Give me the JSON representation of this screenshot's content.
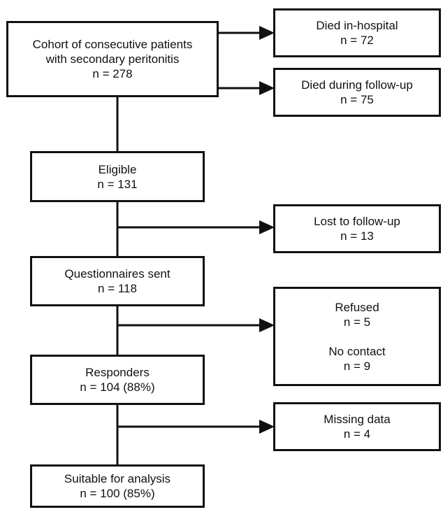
{
  "main_flow": {
    "cohort": {
      "line1": "Cohort of consecutive patients",
      "line2": "with secondary peritonitis",
      "count": "n = 278"
    },
    "eligible": {
      "label": "Eligible",
      "count": "n = 131"
    },
    "questionnaires_sent": {
      "label": "Questionnaires sent",
      "count": "n = 118"
    },
    "responders": {
      "label": "Responders",
      "count": "n = 104 (88%)"
    },
    "suitable": {
      "label": "Suitable for analysis",
      "count": "n = 100 (85%)"
    }
  },
  "exclusions": {
    "died_in_hospital": {
      "label": "Died in-hospital",
      "count": "n = 72"
    },
    "died_follow_up": {
      "label": "Died during follow-up",
      "count": "n = 75"
    },
    "lost_follow_up": {
      "label": "Lost to follow-up",
      "count": "n = 13"
    },
    "nonresponse": {
      "refused_label": "Refused",
      "refused_count": "n = 5",
      "no_contact_label": "No contact",
      "no_contact_count": "n = 9"
    },
    "missing_data": {
      "label": "Missing data",
      "count": "n = 4"
    }
  }
}
